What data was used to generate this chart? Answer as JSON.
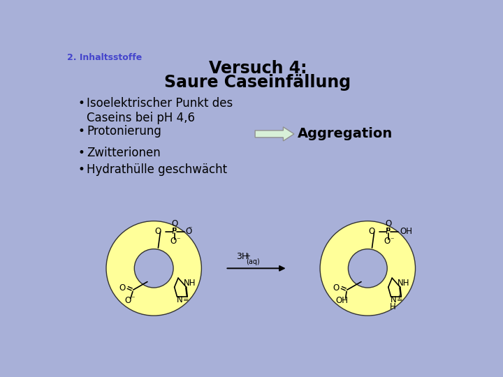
{
  "background_color": "#a8b0d8",
  "title_line1": "Versuch 4:",
  "title_line2": "Saure Caseinfällung",
  "subtitle": "2. Inhaltsstoffe",
  "bullets": [
    "Isoelektrischer Punkt des\nCaseins bei pH 4,6",
    "Protonierung",
    "Zwitterionen",
    "Hydrathülle geschwächt"
  ],
  "aggregation_text": "Aggregation",
  "arrow_fill": "#d8f0d8",
  "arrow_edge": "#909090",
  "donut_fill": "#ffff99",
  "donut_edge": "#333333",
  "title_color": "#000000",
  "subtitle_color": "#4444cc",
  "bullet_color": "#000000",
  "title_fontsize": 17,
  "subtitle_fontsize": 9,
  "bullet_fontsize": 12,
  "aggregation_fontsize": 14,
  "chem_fontsize": 8.5
}
